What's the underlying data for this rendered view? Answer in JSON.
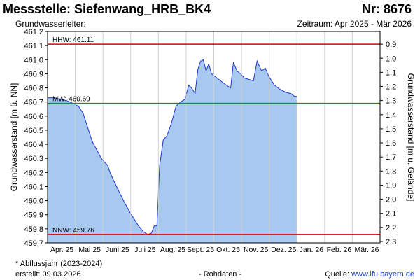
{
  "header": {
    "station_title": "Messstelle: Siefenwang_HRB_BK4",
    "station_nr": "Nr: 8676",
    "aquifer_label": "Grundwasserleiter:",
    "period_label": "Zeitraum: Apr 2025 - Mär 2026"
  },
  "footer": {
    "note": "* Abflussjahr (2023-2024)",
    "created": "erstellt:  09.03.2026",
    "rawdata": "- Rohdaten -",
    "source_prefix": "Quelle: ",
    "source_link": "www.lfu.bayern.de"
  },
  "chart_data": {
    "type": "area",
    "ylabel_left": "Grundwasserstand [m ü. NN]",
    "ylabel_right": "Grundwasserstand [m u. Gelände]",
    "ylim_left": [
      459.7,
      461.2
    ],
    "yticks_left": [
      "461,2",
      "461,1",
      "461,0",
      "460,9",
      "460,8",
      "460,7",
      "460,6",
      "460,5",
      "460,4",
      "460,3",
      "460,2",
      "460,1",
      "460,0",
      "459,9",
      "459,8",
      "459,7"
    ],
    "yticks_right": [
      "0,9",
      "1,0",
      "1,1",
      "1,2",
      "1,3",
      "1,4",
      "1,5",
      "1,6",
      "1,7",
      "1,8",
      "1,9",
      "2,0",
      "2,1",
      "2,2",
      "2,3"
    ],
    "xticks": [
      "Apr. 25",
      "Mai 25",
      "Juni 25",
      "Juli 25",
      "Aug. 25",
      "Sept. 25",
      "Okt. 25",
      "Nov. 25",
      "Dez. 25",
      "Jan. 26",
      "Feb. 26",
      "Mär. 26"
    ],
    "reference_lines": [
      {
        "label": "HHW: 461.11",
        "value": 461.11,
        "color": "#e00000"
      },
      {
        "label": "MW: 460.69",
        "value": 460.69,
        "color": "#009900"
      },
      {
        "label": "NNW: 459.76",
        "value": 459.76,
        "color": "#e00000"
      }
    ],
    "series": [
      {
        "values": [
          {
            "x": "2025-04-01",
            "y": 460.73
          },
          {
            "x": "2025-04-08",
            "y": 460.73
          },
          {
            "x": "2025-04-15",
            "y": 460.72
          },
          {
            "x": "2025-04-22",
            "y": 460.71
          },
          {
            "x": "2025-04-29",
            "y": 460.69
          },
          {
            "x": "2025-05-05",
            "y": 460.67
          },
          {
            "x": "2025-05-10",
            "y": 460.62
          },
          {
            "x": "2025-05-15",
            "y": 460.52
          },
          {
            "x": "2025-05-20",
            "y": 460.42
          },
          {
            "x": "2025-05-25",
            "y": 460.36
          },
          {
            "x": "2025-05-30",
            "y": 460.3
          },
          {
            "x": "2025-06-03",
            "y": 460.27
          },
          {
            "x": "2025-06-06",
            "y": 460.25
          },
          {
            "x": "2025-06-08",
            "y": 460.21
          },
          {
            "x": "2025-06-12",
            "y": 460.15
          },
          {
            "x": "2025-06-18",
            "y": 460.07
          },
          {
            "x": "2025-06-25",
            "y": 459.98
          },
          {
            "x": "2025-07-02",
            "y": 459.9
          },
          {
            "x": "2025-07-10",
            "y": 459.82
          },
          {
            "x": "2025-07-15",
            "y": 459.78
          },
          {
            "x": "2025-07-20",
            "y": 459.76
          },
          {
            "x": "2025-07-24",
            "y": 459.77
          },
          {
            "x": "2025-07-27",
            "y": 459.82
          },
          {
            "x": "2025-07-30",
            "y": 459.82
          },
          {
            "x": "2025-08-02",
            "y": 460.25
          },
          {
            "x": "2025-08-06",
            "y": 460.43
          },
          {
            "x": "2025-08-10",
            "y": 460.46
          },
          {
            "x": "2025-08-15",
            "y": 460.55
          },
          {
            "x": "2025-08-20",
            "y": 460.67
          },
          {
            "x": "2025-08-25",
            "y": 460.7
          },
          {
            "x": "2025-08-30",
            "y": 460.72
          },
          {
            "x": "2025-09-03",
            "y": 460.82
          },
          {
            "x": "2025-09-06",
            "y": 460.8
          },
          {
            "x": "2025-09-10",
            "y": 460.76
          },
          {
            "x": "2025-09-13",
            "y": 460.93
          },
          {
            "x": "2025-09-16",
            "y": 460.99
          },
          {
            "x": "2025-09-19",
            "y": 461.0
          },
          {
            "x": "2025-09-22",
            "y": 460.92
          },
          {
            "x": "2025-09-25",
            "y": 460.97
          },
          {
            "x": "2025-09-28",
            "y": 460.9
          },
          {
            "x": "2025-10-02",
            "y": 460.88
          },
          {
            "x": "2025-10-08",
            "y": 460.85
          },
          {
            "x": "2025-10-14",
            "y": 460.82
          },
          {
            "x": "2025-10-19",
            "y": 460.8
          },
          {
            "x": "2025-10-22",
            "y": 460.98
          },
          {
            "x": "2025-10-26",
            "y": 460.92
          },
          {
            "x": "2025-10-30",
            "y": 460.9
          },
          {
            "x": "2025-11-03",
            "y": 460.87
          },
          {
            "x": "2025-11-08",
            "y": 460.86
          },
          {
            "x": "2025-11-13",
            "y": 460.85
          },
          {
            "x": "2025-11-17",
            "y": 460.99
          },
          {
            "x": "2025-11-22",
            "y": 460.92
          },
          {
            "x": "2025-11-26",
            "y": 460.94
          },
          {
            "x": "2025-11-30",
            "y": 460.88
          },
          {
            "x": "2025-12-06",
            "y": 460.82
          },
          {
            "x": "2025-12-12",
            "y": 460.79
          },
          {
            "x": "2025-12-18",
            "y": 460.77
          },
          {
            "x": "2025-12-24",
            "y": 460.76
          },
          {
            "x": "2025-12-28",
            "y": 460.74
          },
          {
            "x": "2025-12-31",
            "y": 460.74
          }
        ]
      }
    ],
    "colors": {
      "fill": "#a7c9f0",
      "line": "#1f32c8",
      "grid": "#d0d0d0"
    },
    "grid": true,
    "legend": "none"
  }
}
